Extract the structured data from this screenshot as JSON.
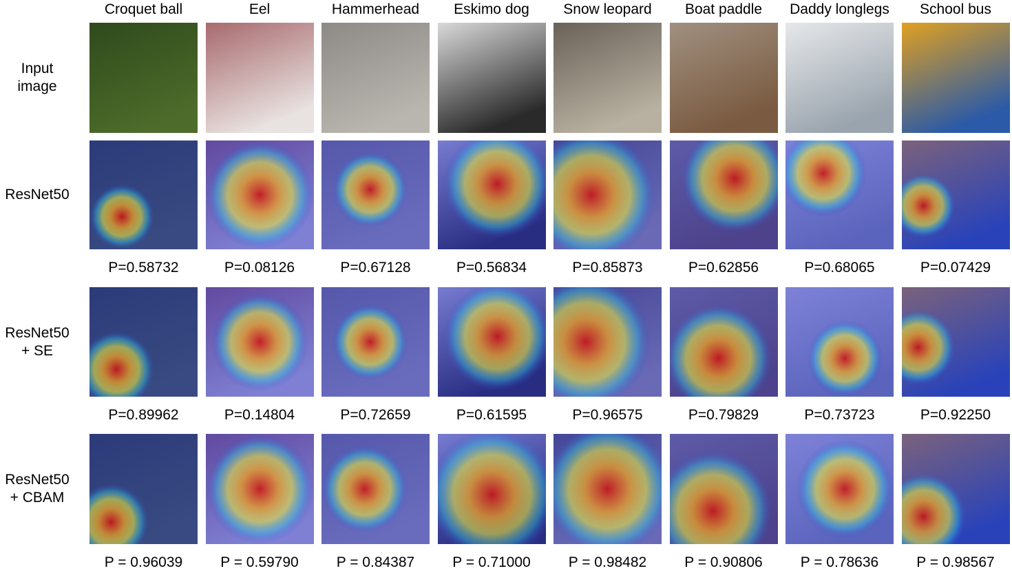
{
  "columns": [
    "Croquet ball",
    "Eel",
    "Hammerhead",
    "Eskimo dog",
    "Snow leopard",
    "Boat paddle",
    "Daddy longlegs",
    "School bus"
  ],
  "rows": [
    {
      "label": [
        "Input",
        "image"
      ]
    },
    {
      "label": [
        "ResNet50"
      ],
      "probs": [
        "P=0.58732",
        "P=0.08126",
        "P=0.67128",
        "P=0.56834",
        "P=0.85873",
        "P=0.62856",
        "P=0.68065",
        "P=0.07429"
      ]
    },
    {
      "label": [
        "ResNet50",
        "+ SE"
      ],
      "probs": [
        "P=0.89962",
        "P=0.14804",
        "P=0.72659",
        "P=0.61595",
        "P=0.96575",
        "P=0.79829",
        "P=0.73723",
        "P=0.92250"
      ]
    },
    {
      "label": [
        "ResNet50",
        "+ CBAM"
      ],
      "probs": [
        "P = 0.96039",
        "P = 0.59790",
        "P = 0.84387",
        "P = 0.71000",
        "P = 0.98482",
        "P = 0.90806",
        "P = 0.78636",
        "P = 0.98567"
      ]
    }
  ]
}
